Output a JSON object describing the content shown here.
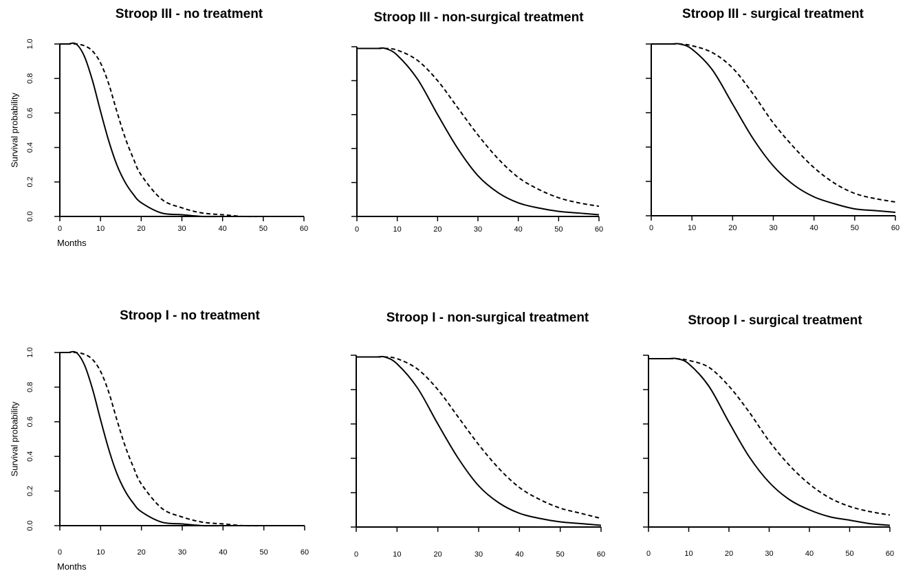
{
  "colors": {
    "line": "#000000",
    "background": "#ffffff"
  },
  "chart_data": [
    {
      "type": "line",
      "title": "Stroop III - no treatment",
      "xlabel": "Months",
      "ylabel": "Survival probability",
      "xlim": [
        0,
        60
      ],
      "ylim": [
        0,
        1
      ],
      "x_ticks": [
        "0",
        "10",
        "20",
        "30",
        "40",
        "50",
        "60"
      ],
      "y_ticks": [
        "0.0",
        "0.2",
        "0.4",
        "0.6",
        "0.8",
        "1.0"
      ],
      "x": [
        0,
        2,
        4,
        6,
        8,
        10,
        12,
        14,
        16,
        18,
        20,
        25,
        30,
        35,
        40,
        45,
        50,
        55,
        60
      ],
      "series": [
        {
          "style": "solid",
          "values": [
            1.0,
            1.0,
            1.0,
            0.93,
            0.79,
            0.61,
            0.44,
            0.3,
            0.2,
            0.13,
            0.08,
            0.02,
            0.01,
            0.0,
            0.0,
            0.0,
            0.0,
            0.0,
            0.0
          ]
        },
        {
          "style": "dashed",
          "values": [
            1.0,
            1.0,
            1.0,
            0.99,
            0.96,
            0.89,
            0.77,
            0.61,
            0.46,
            0.34,
            0.24,
            0.1,
            0.05,
            0.02,
            0.01,
            0.0,
            0.0,
            0.0,
            0.0
          ]
        }
      ]
    },
    {
      "type": "line",
      "title": "Stroop III - non-surgical treatment",
      "xlabel": "",
      "ylabel": "",
      "xlim": [
        0,
        60
      ],
      "ylim": [
        0,
        1
      ],
      "x_ticks": [
        "0",
        "10",
        "20",
        "30",
        "40",
        "50",
        "60"
      ],
      "y_ticks": [
        "",
        "",
        "",
        "",
        "",
        ""
      ],
      "x": [
        0,
        5,
        7,
        10,
        15,
        20,
        25,
        30,
        35,
        40,
        45,
        50,
        55,
        60
      ],
      "series": [
        {
          "style": "solid",
          "values": [
            0.99,
            0.99,
            0.99,
            0.95,
            0.81,
            0.6,
            0.4,
            0.24,
            0.14,
            0.08,
            0.05,
            0.03,
            0.02,
            0.01
          ]
        },
        {
          "style": "dashed",
          "values": [
            0.99,
            0.99,
            0.99,
            0.98,
            0.92,
            0.8,
            0.64,
            0.48,
            0.34,
            0.23,
            0.16,
            0.11,
            0.08,
            0.06
          ]
        }
      ]
    },
    {
      "type": "line",
      "title": "Stroop III - surgical treatment",
      "xlabel": "",
      "ylabel": "",
      "xlim": [
        0,
        60
      ],
      "ylim": [
        0,
        1
      ],
      "x_ticks": [
        "0",
        "10",
        "20",
        "30",
        "40",
        "50",
        "60"
      ],
      "y_ticks": [
        "",
        "",
        "",
        "",
        "",
        ""
      ],
      "x": [
        0,
        5,
        7,
        10,
        15,
        20,
        25,
        30,
        35,
        40,
        45,
        50,
        55,
        60
      ],
      "series": [
        {
          "style": "solid",
          "values": [
            1.0,
            1.0,
            1.0,
            0.97,
            0.85,
            0.65,
            0.45,
            0.29,
            0.18,
            0.11,
            0.07,
            0.04,
            0.03,
            0.02
          ]
        },
        {
          "style": "dashed",
          "values": [
            1.0,
            1.0,
            1.0,
            0.99,
            0.95,
            0.86,
            0.71,
            0.54,
            0.4,
            0.28,
            0.19,
            0.13,
            0.1,
            0.08
          ]
        }
      ]
    },
    {
      "type": "line",
      "title": "Stroop I - no treatment",
      "xlabel": "Months",
      "ylabel": "Survival probability",
      "xlim": [
        0,
        60
      ],
      "ylim": [
        0,
        1
      ],
      "x_ticks": [
        "0",
        "10",
        "20",
        "30",
        "40",
        "50",
        "60"
      ],
      "y_ticks": [
        "0.0",
        "0.2",
        "0.4",
        "0.6",
        "0.8",
        "1.0"
      ],
      "x": [
        0,
        2,
        4,
        6,
        8,
        10,
        12,
        14,
        16,
        18,
        20,
        25,
        30,
        35,
        40,
        45,
        50,
        55,
        60
      ],
      "series": [
        {
          "style": "solid",
          "values": [
            1.0,
            1.0,
            1.0,
            0.93,
            0.79,
            0.61,
            0.44,
            0.3,
            0.2,
            0.13,
            0.08,
            0.02,
            0.01,
            0.0,
            0.0,
            0.0,
            0.0,
            0.0,
            0.0
          ]
        },
        {
          "style": "dashed",
          "values": [
            1.0,
            1.0,
            1.0,
            0.99,
            0.96,
            0.89,
            0.77,
            0.61,
            0.46,
            0.34,
            0.24,
            0.1,
            0.05,
            0.02,
            0.01,
            0.0,
            0.0,
            0.0,
            0.0
          ]
        }
      ]
    },
    {
      "type": "line",
      "title": "Stroop I - non-surgical treatment",
      "xlabel": "",
      "ylabel": "",
      "xlim": [
        0,
        60
      ],
      "ylim": [
        0,
        1
      ],
      "x_ticks": [
        "0",
        "10",
        "20",
        "30",
        "40",
        "50",
        "60"
      ],
      "y_ticks": [
        "",
        "",
        "",
        "",
        "",
        ""
      ],
      "x": [
        0,
        5,
        7,
        10,
        15,
        20,
        25,
        30,
        35,
        40,
        45,
        50,
        55,
        60
      ],
      "series": [
        {
          "style": "solid",
          "values": [
            0.99,
            0.99,
            0.99,
            0.95,
            0.81,
            0.6,
            0.4,
            0.24,
            0.14,
            0.08,
            0.05,
            0.03,
            0.02,
            0.01
          ]
        },
        {
          "style": "dashed",
          "values": [
            0.99,
            0.99,
            0.99,
            0.98,
            0.92,
            0.8,
            0.64,
            0.48,
            0.34,
            0.23,
            0.16,
            0.11,
            0.08,
            0.05
          ]
        }
      ]
    },
    {
      "type": "line",
      "title": "Stroop I - surgical treatment",
      "xlabel": "",
      "ylabel": "",
      "xlim": [
        0,
        60
      ],
      "ylim": [
        0,
        1
      ],
      "x_ticks": [
        "0",
        "10",
        "20",
        "30",
        "40",
        "50",
        "60"
      ],
      "y_ticks": [
        "",
        "",
        "",
        "",
        "",
        ""
      ],
      "x": [
        0,
        5,
        7,
        10,
        15,
        20,
        25,
        30,
        35,
        40,
        45,
        50,
        55,
        60
      ],
      "series": [
        {
          "style": "solid",
          "values": [
            0.98,
            0.98,
            0.98,
            0.95,
            0.82,
            0.61,
            0.41,
            0.26,
            0.16,
            0.1,
            0.06,
            0.04,
            0.02,
            0.01
          ]
        },
        {
          "style": "dashed",
          "values": [
            0.98,
            0.98,
            0.98,
            0.97,
            0.93,
            0.82,
            0.67,
            0.5,
            0.36,
            0.25,
            0.17,
            0.12,
            0.09,
            0.07
          ]
        }
      ]
    }
  ]
}
